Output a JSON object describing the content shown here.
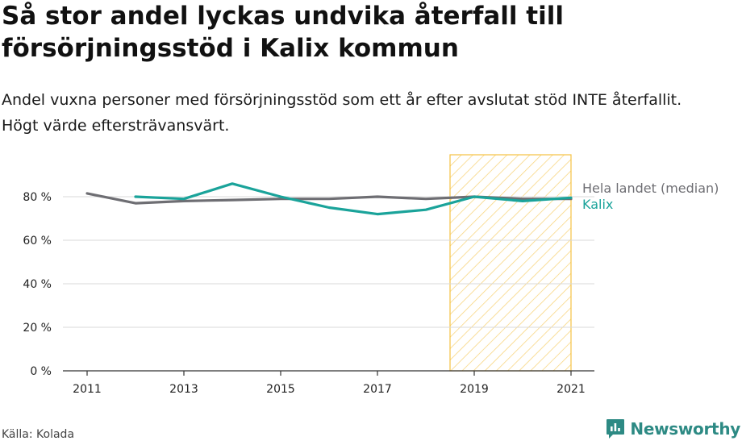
{
  "title": "Så stor andel lyckas undvika återfall till försörjningsstöd i Kalix kommun",
  "subtitle": "Andel vuxna personer med försörjningsstöd som ett år efter avslutat stöd INTE återfallit. Högt värde eftersträvansvärt.",
  "source": "Källa: Kolada",
  "brand": "Newsworthy",
  "colors": {
    "national": "#6e6e73",
    "kalix": "#1aa39a",
    "highlight": "#f5c242",
    "grid": "#d9d9d9",
    "brand": "#2d8a84"
  },
  "chart_data": {
    "type": "line",
    "title": "Så stor andel lyckas undvika återfall till försörjningsstöd i Kalix kommun",
    "subtitle": "Andel vuxna personer med försörjningsstöd som ett år efter avslutat stöd INTE återfallit. Högt värde eftersträvansvärt.",
    "xlabel": "",
    "ylabel": "",
    "x": [
      2011,
      2012,
      2013,
      2014,
      2015,
      2016,
      2017,
      2018,
      2019,
      2020,
      2021
    ],
    "xticks": [
      "2011",
      "2013",
      "2015",
      "2017",
      "2019",
      "2021"
    ],
    "yticks": [
      "0 %",
      "20 %",
      "40 %",
      "60 %",
      "80 %"
    ],
    "ylim": [
      0,
      100
    ],
    "grid": "horizontal",
    "legend": "right, at line ends",
    "highlight_range": [
      2018.5,
      2021
    ],
    "series": [
      {
        "name": "Hela landet (median)",
        "color": "#6e6e73",
        "values": [
          81.5,
          77,
          78,
          78.5,
          79,
          79,
          80,
          79,
          80,
          79,
          79
        ]
      },
      {
        "name": "Kalix",
        "color": "#1aa39a",
        "values": [
          null,
          80,
          79,
          86,
          80,
          75,
          72,
          74,
          80,
          78,
          79.5
        ]
      }
    ]
  }
}
